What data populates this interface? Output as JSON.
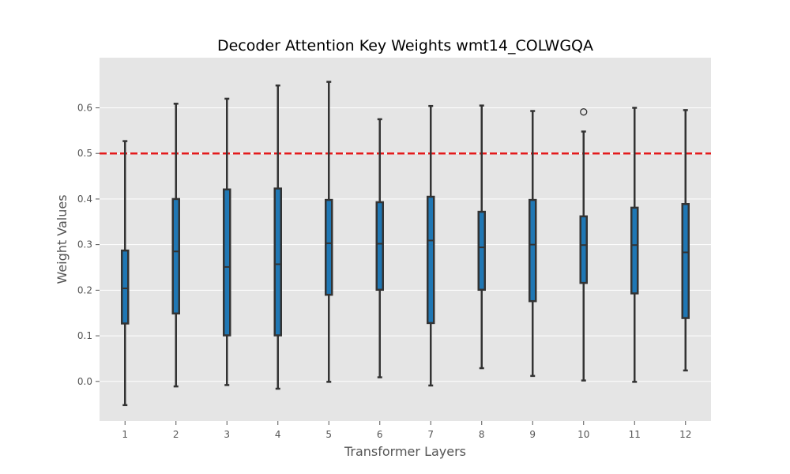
{
  "chart_data": {
    "type": "box",
    "title": "Decoder Attention Key Weights wmt14_COLWGQA",
    "xlabel": "Transformer Layers",
    "ylabel": "Weight Values",
    "categories": [
      "1",
      "2",
      "3",
      "4",
      "5",
      "6",
      "7",
      "8",
      "9",
      "10",
      "11",
      "12"
    ],
    "ylim": [
      -0.087,
      0.71
    ],
    "yticks": [
      0.0,
      0.1,
      0.2,
      0.3,
      0.4,
      0.5,
      0.6
    ],
    "ytick_labels": [
      "0.0",
      "0.1",
      "0.2",
      "0.3",
      "0.4",
      "0.5",
      "0.6"
    ],
    "reference_line": {
      "y": 0.5,
      "color": "#e41a1c",
      "style": "dashed"
    },
    "box_color": "#1f77b4",
    "edge_color": "#333333",
    "background": "#e5e5e5",
    "grid": true,
    "boxes": [
      {
        "layer": "1",
        "whislo": -0.052,
        "q1": 0.127,
        "med": 0.204,
        "q3": 0.287,
        "whishi": 0.527,
        "fliers": []
      },
      {
        "layer": "2",
        "whislo": -0.011,
        "q1": 0.149,
        "med": 0.285,
        "q3": 0.4,
        "whishi": 0.609,
        "fliers": []
      },
      {
        "layer": "3",
        "whislo": -0.008,
        "q1": 0.101,
        "med": 0.251,
        "q3": 0.421,
        "whishi": 0.62,
        "fliers": []
      },
      {
        "layer": "4",
        "whislo": -0.016,
        "q1": 0.101,
        "med": 0.257,
        "q3": 0.423,
        "whishi": 0.649,
        "fliers": []
      },
      {
        "layer": "5",
        "whislo": -0.001,
        "q1": 0.19,
        "med": 0.303,
        "q3": 0.398,
        "whishi": 0.657,
        "fliers": []
      },
      {
        "layer": "6",
        "whislo": 0.009,
        "q1": 0.201,
        "med": 0.302,
        "q3": 0.393,
        "whishi": 0.575,
        "fliers": []
      },
      {
        "layer": "7",
        "whislo": -0.009,
        "q1": 0.128,
        "med": 0.309,
        "q3": 0.405,
        "whishi": 0.604,
        "fliers": []
      },
      {
        "layer": "8",
        "whislo": 0.029,
        "q1": 0.201,
        "med": 0.294,
        "q3": 0.372,
        "whishi": 0.605,
        "fliers": []
      },
      {
        "layer": "9",
        "whislo": 0.012,
        "q1": 0.176,
        "med": 0.3,
        "q3": 0.398,
        "whishi": 0.593,
        "fliers": []
      },
      {
        "layer": "10",
        "whislo": 0.002,
        "q1": 0.216,
        "med": 0.299,
        "q3": 0.362,
        "whishi": 0.548,
        "fliers": [
          0.591
        ]
      },
      {
        "layer": "11",
        "whislo": -0.001,
        "q1": 0.193,
        "med": 0.299,
        "q3": 0.381,
        "whishi": 0.6,
        "fliers": []
      },
      {
        "layer": "12",
        "whislo": 0.024,
        "q1": 0.139,
        "med": 0.283,
        "q3": 0.389,
        "whishi": 0.595,
        "fliers": []
      }
    ]
  }
}
